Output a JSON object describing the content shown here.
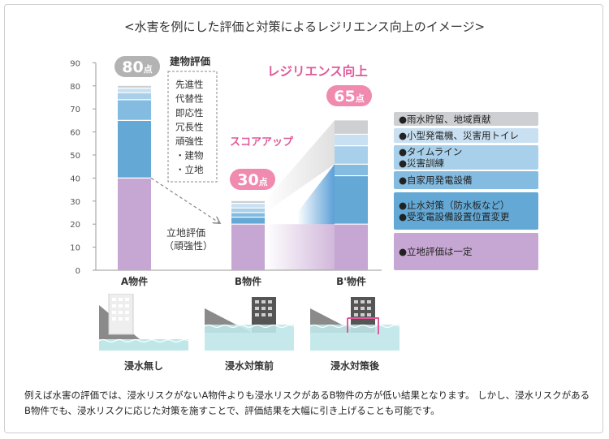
{
  "title": "<水害を例にした評価と対策によるレジリエンス向上のイメージ>",
  "chart_data": {
    "type": "bar",
    "stacked": true,
    "categories": [
      "A物件",
      "B物件",
      "B'物件"
    ],
    "ylim": [
      0,
      90
    ],
    "yticks": [
      0,
      10,
      20,
      30,
      40,
      50,
      60,
      70,
      80,
      90
    ],
    "grid": false,
    "totals": [
      "80点",
      "30点",
      "65点"
    ],
    "series": [
      {
        "key": "location",
        "color": "#c6a6d2",
        "values": [
          40,
          20,
          20
        ]
      },
      {
        "key": "flood",
        "color": "#64a9d6",
        "values": [
          25,
          3,
          21
        ]
      },
      {
        "key": "generator",
        "color": "#84bce1",
        "values": [
          9,
          2,
          5
        ]
      },
      {
        "key": "timeline",
        "color": "#a8d0ea",
        "values": [
          3,
          2,
          8
        ]
      },
      {
        "key": "small",
        "color": "#c8e0f1",
        "values": [
          2,
          2,
          5
        ]
      },
      {
        "key": "rain",
        "color": "#cdcfd3",
        "values": [
          1,
          1,
          6
        ]
      }
    ],
    "annotations": {
      "building_eval": "建物評価",
      "building_items": [
        "先進性",
        "代替性",
        "即応性",
        "冗長性",
        "頑強性",
        "・建物",
        "・立地"
      ],
      "location_eval": [
        "立地評価",
        "（頑強性）"
      ],
      "score_up": "スコアアップ",
      "resilience_up": "レジリエンス向上"
    }
  },
  "legend": [
    {
      "lines": [
        "●雨水貯留、地域貢献"
      ],
      "color": "#cdcfd3"
    },
    {
      "lines": [
        "●小型発電機、災害用トイレ"
      ],
      "color": "#c8e0f1"
    },
    {
      "lines": [
        "●タイムライン",
        "●災害訓練"
      ],
      "color": "#a8d0ea"
    },
    {
      "lines": [
        "●自家用発電設備"
      ],
      "color": "#84bce1"
    },
    {
      "lines": [
        "●止水対策（防水板など）",
        "●受変電設備設置位置変更"
      ],
      "color": "#64a9d6"
    },
    {
      "lines": [
        "●立地評価は一定"
      ],
      "color": "#c6a6d2"
    }
  ],
  "scenes": [
    {
      "label": "浸水無し",
      "building_color": "#eeeeee"
    },
    {
      "label": "浸水対策前",
      "building_color": "#555555"
    },
    {
      "label": "浸水対策後",
      "building_color": "#555555",
      "barrier_color": "#e0589a"
    }
  ],
  "footer": "例えば水害の評価では、浸水リスクがないA物件よりも浸水リスクがあるB物件の方が低い結果となります。 しかし、浸水リスクがあるB物件でも、浸水リスクに応じた対策を施すことで、評価結果を大幅に引き上げることも可能です。"
}
